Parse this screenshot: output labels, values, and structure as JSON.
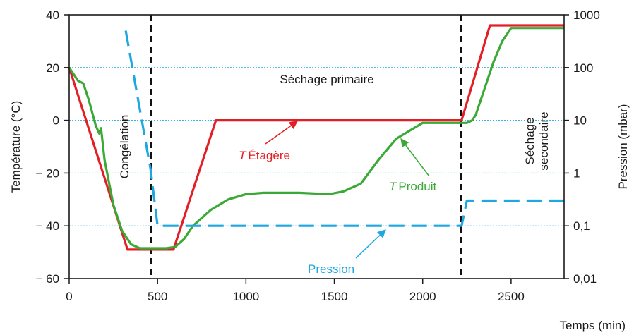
{
  "chart_data": {
    "type": "line",
    "xlabel": "Temps (min)",
    "ylabel_left": "Température (°C)",
    "ylabel_right": "Pression (mbar)",
    "x_range": [
      0,
      2800
    ],
    "x_ticks": [
      0,
      500,
      1000,
      1500,
      2000,
      2500
    ],
    "x_tick_labels": [
      "0",
      "500",
      "1000",
      "1500",
      "2000",
      "2500"
    ],
    "y_left_range": [
      -60,
      40
    ],
    "y_left_ticks": [
      -60,
      -40,
      -20,
      0,
      20,
      40
    ],
    "y_left_tick_labels": [
      "− 60",
      "− 40",
      "− 20",
      "0",
      "20",
      "40"
    ],
    "y_right_range": [
      0.01,
      1000
    ],
    "y_right_scale": "log",
    "y_right_ticks": [
      0.01,
      0.1,
      1,
      10,
      100,
      1000
    ],
    "y_right_tick_labels": [
      "0,01",
      "0,1",
      "1",
      "10",
      "100",
      "1000"
    ],
    "grid": "horizontal dotted",
    "phase_markers_x": [
      465,
      2215
    ],
    "series": [
      {
        "name": "T Étagère",
        "axis": "left",
        "color": "#e31e24",
        "x": [
          0,
          330,
          590,
          830,
          2220,
          2380,
          2800
        ],
        "y": [
          20,
          -49,
          -49,
          0,
          0,
          36,
          36
        ]
      },
      {
        "name": "T Produit",
        "axis": "left",
        "color": "#3aa935",
        "x": [
          0,
          50,
          80,
          110,
          150,
          170,
          180,
          200,
          250,
          300,
          350,
          400,
          460,
          550,
          600,
          650,
          700,
          800,
          900,
          1000,
          1100,
          1300,
          1470,
          1550,
          1650,
          1750,
          1850,
          1950,
          2000,
          2220,
          2250,
          2280,
          2300,
          2350,
          2400,
          2450,
          2480,
          2500,
          2550,
          2800
        ],
        "y": [
          20,
          15,
          14,
          8,
          -2,
          -5,
          -3,
          -15,
          -32,
          -42,
          -47,
          -48.5,
          -48.5,
          -48.5,
          -48,
          -45,
          -40,
          -34,
          -30,
          -28,
          -27.5,
          -27.5,
          -28,
          -27,
          -24,
          -15,
          -7,
          -3,
          -1,
          -1,
          -1,
          0,
          2,
          12,
          22,
          30,
          33,
          35,
          35,
          35
        ]
      },
      {
        "name": "Pression",
        "axis": "right",
        "color": "#1ea7e0",
        "dash": true,
        "x": [
          320,
          460,
          500,
          2220,
          2250,
          2800
        ],
        "y": [
          500,
          1.2,
          0.1,
          0.1,
          0.3,
          0.3
        ]
      }
    ],
    "annotations": [
      {
        "text": "Congélation",
        "rotated": true
      },
      {
        "text": "Séchage primaire",
        "rotated": false
      },
      {
        "text": "Séchage",
        "rotated": true
      },
      {
        "text": "secondaire",
        "rotated": true
      }
    ],
    "series_labels": [
      {
        "prefix": "T",
        "text": "Étagère",
        "color": "#e31e24"
      },
      {
        "prefix": "T",
        "text": "Produit",
        "color": "#3aa935"
      },
      {
        "prefix": "",
        "text": "Pression",
        "color": "#1ea7e0"
      }
    ]
  }
}
